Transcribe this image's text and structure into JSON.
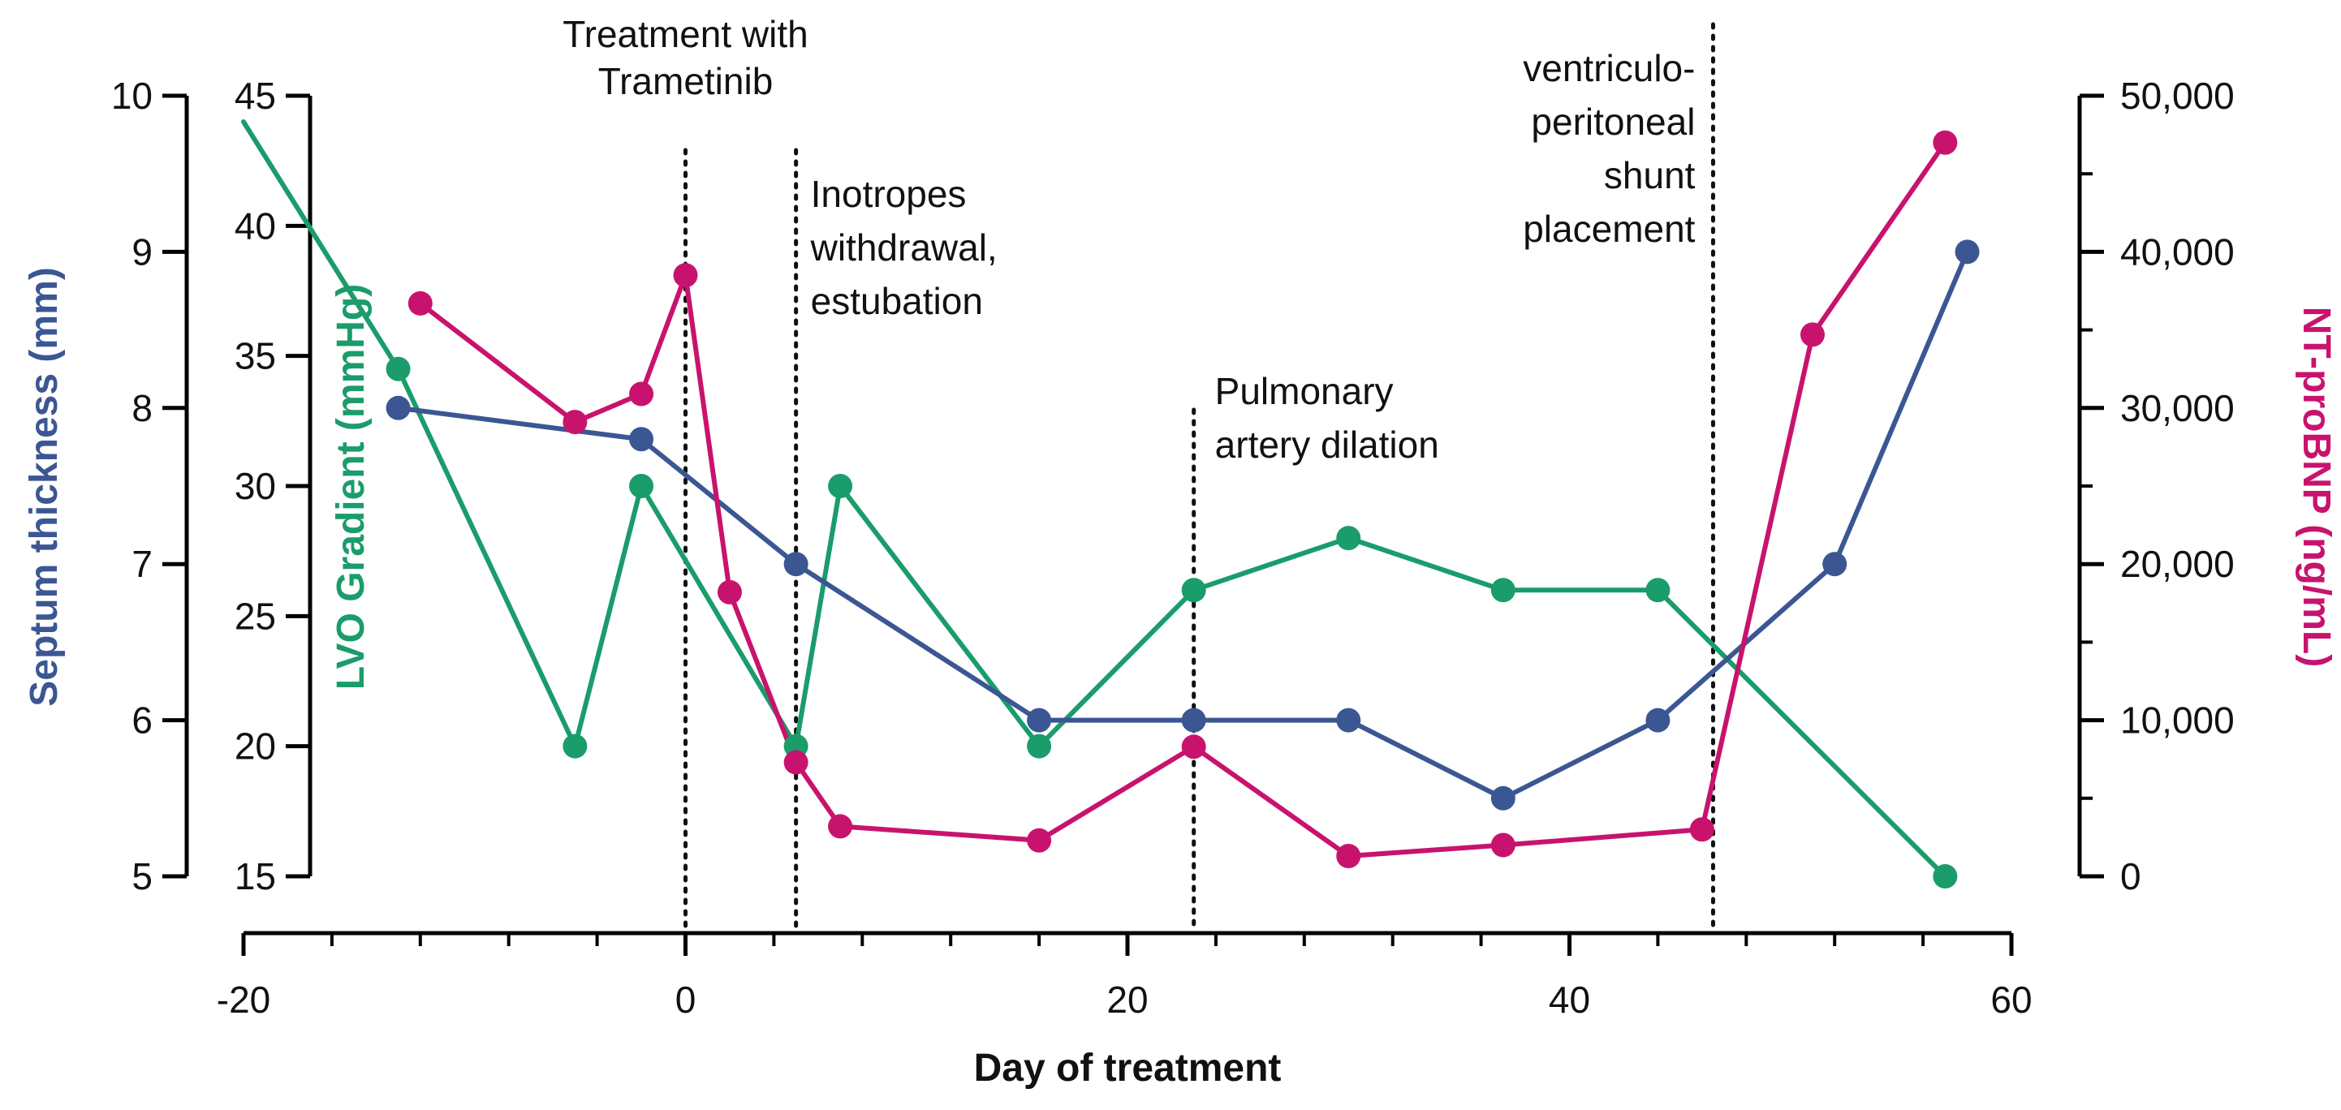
{
  "chart_data": {
    "type": "line",
    "title": "",
    "xlabel": "Day of treatment",
    "xlim": [
      -20,
      60
    ],
    "xticks": [
      "-20",
      "0",
      "20",
      "40",
      "60"
    ],
    "y_axes": [
      {
        "id": "septum",
        "label": "Septum thickness (mm)",
        "color": "#3B5793",
        "ylim": [
          5,
          10
        ],
        "ticks": [
          "5",
          "6",
          "7",
          "8",
          "9",
          "10"
        ]
      },
      {
        "id": "lvo",
        "label": "LVO Gradient (mmHg)",
        "color": "#1A9C6B",
        "ylim": [
          15,
          45
        ],
        "ticks": [
          "15",
          "20",
          "25",
          "30",
          "35",
          "40",
          "45"
        ]
      },
      {
        "id": "ntprobnp",
        "label": "NT-proBNP (ng/mL)",
        "color": "#C8136E",
        "ylim": [
          0,
          50000
        ],
        "ticks": [
          "0",
          "10,000",
          "20,000",
          "30,000",
          "40,000",
          "50,000"
        ]
      }
    ],
    "series": [
      {
        "name": "Septum thickness",
        "axis": "septum",
        "color": "#3B5793",
        "x": [
          -13,
          -2,
          5,
          16,
          23,
          30,
          37,
          44,
          52,
          58
        ],
        "values": [
          8,
          7.8,
          7,
          6,
          6,
          6,
          5.5,
          6,
          7,
          9
        ]
      },
      {
        "name": "LVO Gradient",
        "axis": "lvo",
        "color": "#1A9C6B",
        "x": [
          -20,
          -13,
          -5,
          -2,
          5,
          7,
          16,
          23,
          30,
          37,
          44,
          57
        ],
        "values": [
          44,
          34.5,
          20,
          30,
          20,
          30,
          20,
          26,
          28,
          26,
          26,
          15
        ],
        "first_point_marker": false
      },
      {
        "name": "NT-proBNP",
        "axis": "ntprobnp",
        "color": "#C8136E",
        "x": [
          -12,
          -5,
          -2,
          0,
          2,
          5,
          7,
          16,
          23,
          30,
          37,
          46,
          51,
          57
        ],
        "values": [
          36700,
          29100,
          30900,
          38500,
          18200,
          7300,
          3200,
          2300,
          8300,
          1300,
          2000,
          3000,
          34700,
          47000
        ]
      }
    ],
    "annotations": [
      {
        "x": 0,
        "lines": [
          "Treatment with",
          "Trametinib"
        ]
      },
      {
        "x": 5,
        "lines": [
          "Inotropes",
          "withdrawal,",
          "estubation"
        ]
      },
      {
        "x": 23,
        "lines": [
          "Pulmonary",
          "artery dilation"
        ]
      },
      {
        "x": 46.5,
        "lines": [
          "ventriculo-",
          "peritoneal",
          "shunt",
          "placement"
        ]
      }
    ]
  }
}
